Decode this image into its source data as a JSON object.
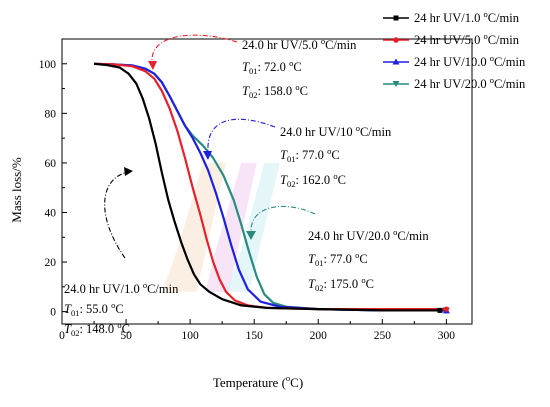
{
  "chart_data": {
    "type": "line",
    "xlabel": "Temperature (",
    "xlabel_sup": "o",
    "xlabel_end": "C)",
    "ylabel": "Mass loss/%",
    "xlim": [
      0,
      320
    ],
    "ylim": [
      -5,
      110
    ],
    "xticks": [
      0,
      50,
      100,
      150,
      200,
      250,
      300
    ],
    "yticks": [
      0,
      20,
      40,
      60,
      80,
      100
    ],
    "legend_position": "top-right",
    "series": [
      {
        "name": "24 hr UV/1.0 °C/min",
        "legend_main": "24 hr UV/1.0 ",
        "legend_sup": "o",
        "legend_end": "C/min",
        "color": "#000000",
        "marker": "square",
        "x": [
          25,
          35,
          45,
          52,
          58,
          63,
          68,
          73,
          78,
          83,
          88,
          93,
          98,
          103,
          108,
          115,
          125,
          140,
          160,
          200,
          250,
          295
        ],
        "y": [
          100,
          99.5,
          98.5,
          96,
          92,
          86,
          78,
          68,
          56,
          45,
          36,
          28,
          21,
          15,
          11,
          8,
          5,
          2.5,
          1.5,
          1,
          0.5,
          0.5
        ]
      },
      {
        "name": "24 hr UV/5.0 °C/min",
        "legend_main": "24 hr UV/5.0 ",
        "legend_sup": "o",
        "legend_end": "C/min",
        "color": "#e8202a",
        "marker": "circle",
        "x": [
          25,
          40,
          55,
          65,
          72,
          78,
          84,
          90,
          96,
          102,
          108,
          113,
          118,
          123,
          128,
          135,
          145,
          160,
          200,
          250,
          300
        ],
        "y": [
          100,
          99.8,
          99,
          97,
          94,
          89,
          82,
          73,
          62,
          50,
          39,
          29,
          20,
          13,
          8,
          4.5,
          2.5,
          1.5,
          1,
          1,
          1
        ]
      },
      {
        "name": "24 hr UV/10.0 °C/min",
        "legend_main": "24 hr UV/10.0 ",
        "legend_sup": "o",
        "legend_end": "C/min",
        "color": "#1f1fe0",
        "marker": "triangle",
        "x": [
          25,
          40,
          55,
          65,
          72,
          78,
          84,
          90,
          96,
          102,
          108,
          114,
          120,
          126,
          132,
          138,
          145,
          155,
          170,
          200,
          250,
          300
        ],
        "y": [
          100,
          99.8,
          99.3,
          98,
          96,
          92.5,
          87,
          81,
          75,
          70,
          64,
          57,
          48,
          38,
          27,
          17,
          9,
          4,
          2,
          1,
          0.5,
          0.5
        ]
      },
      {
        "name": "24 hr UV/20.0 °C/min",
        "legend_main": "24 hr UV/20.0 ",
        "legend_sup": "o",
        "legend_end": "C/min",
        "color": "#2a8a7e",
        "marker": "triangle-down",
        "x": [
          25,
          40,
          55,
          65,
          72,
          78,
          84,
          90,
          96,
          102,
          110,
          118,
          126,
          134,
          140,
          146,
          152,
          158,
          165,
          175,
          200,
          250,
          300
        ],
        "y": [
          100,
          99.8,
          99.3,
          98,
          96,
          92.5,
          87,
          81,
          75,
          71,
          67,
          62,
          55,
          45,
          35,
          24,
          14,
          7,
          3.5,
          2,
          1,
          0.5,
          0.5
        ]
      }
    ],
    "shading": [
      {
        "color": "#f7e1cd",
        "x": [
          78,
          105,
          128,
          110,
          90
        ]
      },
      {
        "color": "#f2cdf0",
        "x": [
          112,
          130,
          152,
          140,
          120
        ]
      },
      {
        "color": "#cdeff3",
        "x": [
          128,
          146,
          170,
          158,
          140
        ]
      }
    ],
    "annotations": [
      {
        "id": "a1",
        "title_main": "24.0 hr UV/1.0 ",
        "title_sup": "o",
        "title_end": "C/min",
        "t01_sym": "T",
        "t01_sub": "01",
        "t01_val": ": 55.0 ",
        "t01_sup": "o",
        "t01_end": "C",
        "t02_sym": "T",
        "t02_sub": "02",
        "t02_val": ": 148.0 ",
        "t02_sup": "o",
        "t02_end": "C"
      },
      {
        "id": "a2",
        "title_main": "24.0 hr UV/5.0 ",
        "title_sup": "o",
        "title_end": "C/min",
        "t01_sym": "T",
        "t01_sub": "01",
        "t01_val": ": 72.0 ",
        "t01_sup": "o",
        "t01_end": "C",
        "t02_sym": "T",
        "t02_sub": "02",
        "t02_val": ": 158.0 ",
        "t02_sup": "o",
        "t02_end": "C"
      },
      {
        "id": "a3",
        "title_main": "24.0 hr UV/10 ",
        "title_sup": "o",
        "title_end": "C/min",
        "t01_sym": "T",
        "t01_sub": "01",
        "t01_val": ": 77.0 ",
        "t01_sup": "o",
        "t01_end": "C",
        "t02_sym": "T",
        "t02_sub": "02",
        "t02_val": ": 162.0 ",
        "t02_sup": "o",
        "t02_end": "C"
      },
      {
        "id": "a4",
        "title_main": "24.0 hr UV/20.0 ",
        "title_sup": "o",
        "title_end": "C/min",
        "t01_sym": "T",
        "t01_sub": "01",
        "t01_val": ": 77.0 ",
        "t01_sup": "o",
        "t01_end": "C",
        "t02_sym": "T",
        "t02_sub": "02",
        "t02_val": ": 175.0 ",
        "t02_sup": "o",
        "t02_end": "C"
      }
    ]
  }
}
